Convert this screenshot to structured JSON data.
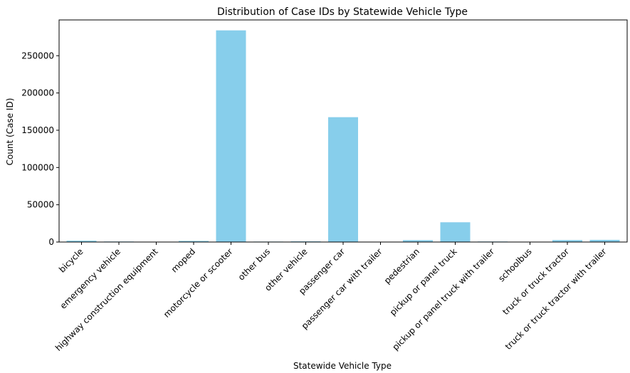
{
  "chart_data": {
    "type": "bar",
    "title": "Distribution of Case IDs by Statewide Vehicle Type",
    "xlabel": "Statewide Vehicle Type",
    "ylabel": "Count (Case ID)",
    "categories": [
      "bicycle",
      "emergency vehicle",
      "highway construction equipment",
      "moped",
      "motorcycle or scooter",
      "other bus",
      "other vehicle",
      "passenger car",
      "passenger car with trailer",
      "pedestrian",
      "pickup or panel truck",
      "pickup or panel truck with trailer",
      "schoolbus",
      "truck or truck tractor",
      "truck or truck tractor with trailer"
    ],
    "values": [
      1800,
      700,
      100,
      1500,
      284000,
      600,
      900,
      167500,
      150,
      2500,
      26500,
      700,
      150,
      2600,
      2900
    ],
    "ylim": [
      0,
      298000
    ],
    "yticks": [
      0,
      50000,
      100000,
      150000,
      200000,
      250000
    ],
    "bar_color": "#87CEEB",
    "grid": false,
    "legend": "none"
  }
}
